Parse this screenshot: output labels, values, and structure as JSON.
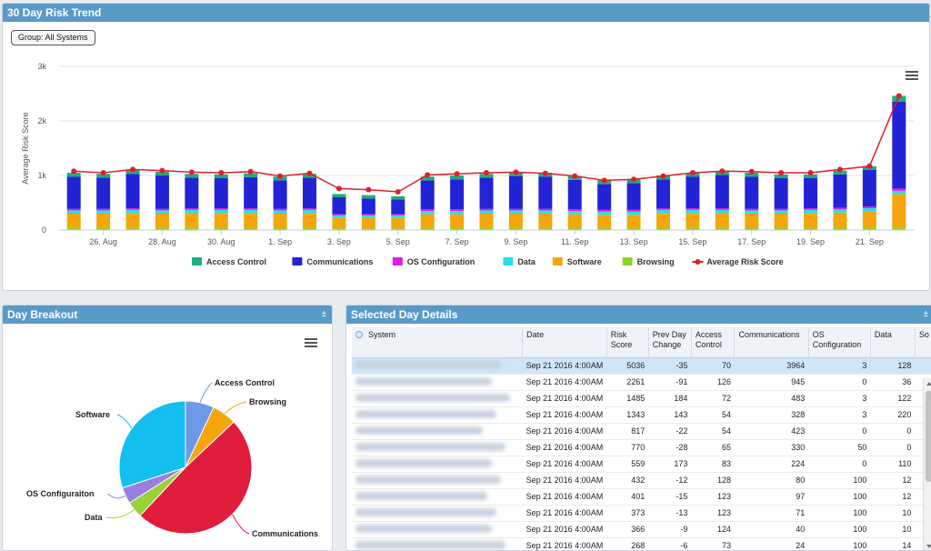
{
  "trend_panel": {
    "title": "30 Day Risk Trend",
    "group_button": "Group: All Systems",
    "menu_icon": "hamburger-menu-icon"
  },
  "breakout_panel": {
    "title": "Day Breakout",
    "collapse": "±",
    "menu_icon": "hamburger-menu-icon"
  },
  "details_panel": {
    "title": "Selected Day Details",
    "collapse": "±",
    "columns": [
      "System",
      "Date",
      "Risk Score",
      "Prev Day Change",
      "Access Control",
      "Communications",
      "OS Configuration",
      "Data",
      "So"
    ],
    "rows": [
      [
        "",
        "Sep 21 2016 4:00AM",
        "5036",
        "-35",
        "70",
        "3964",
        "3",
        "128"
      ],
      [
        "",
        "Sep 21 2016 4:00AM",
        "2261",
        "-91",
        "126",
        "945",
        "0",
        "36"
      ],
      [
        "",
        "Sep 21 2016 4:00AM",
        "1485",
        "184",
        "72",
        "483",
        "3",
        "122"
      ],
      [
        "",
        "Sep 21 2016 4:00AM",
        "1343",
        "143",
        "54",
        "328",
        "3",
        "220"
      ],
      [
        "",
        "Sep 21 2016 4:00AM",
        "817",
        "-22",
        "54",
        "423",
        "0",
        "0"
      ],
      [
        "",
        "Sep 21 2016 4:00AM",
        "770",
        "-28",
        "65",
        "330",
        "50",
        "0"
      ],
      [
        "",
        "Sep 21 2016 4:00AM",
        "559",
        "173",
        "83",
        "224",
        "0",
        "110"
      ],
      [
        "",
        "Sep 21 2016 4:00AM",
        "432",
        "-12",
        "128",
        "80",
        "100",
        "12"
      ],
      [
        "",
        "Sep 21 2016 4:00AM",
        "401",
        "-15",
        "123",
        "97",
        "100",
        "12"
      ],
      [
        "",
        "Sep 21 2016 4:00AM",
        "373",
        "-13",
        "123",
        "71",
        "100",
        "10"
      ],
      [
        "",
        "Sep 21 2016 4:00AM",
        "366",
        "-9",
        "124",
        "40",
        "100",
        "10"
      ],
      [
        "",
        "Sep 21 2016 4:00AM",
        "268",
        "-6",
        "73",
        "24",
        "100",
        "14"
      ]
    ]
  },
  "colors": {
    "Access Control": "#1dae7a",
    "Communications": "#2323d6",
    "OS Configuration": "#e31ae3",
    "Data": "#27dfe6",
    "Software": "#f5a60c",
    "Browsing": "#86d627",
    "Average Risk Score": "#e01e2a",
    "pie_access": "#6f98e6",
    "pie_browsing": "#f5a60c",
    "pie_comms": "#e01c3c",
    "pie_data": "#9ad03a",
    "pie_os": "#9b7fe0",
    "pie_software": "#12bfef"
  },
  "chart_data": [
    {
      "type": "bar",
      "stacked": true,
      "ylabel": "Average Risk Score",
      "ylim": [
        0,
        3000
      ],
      "yticks": [
        "0",
        "1k",
        "2k",
        "3k"
      ],
      "xtick_labels": [
        "26. Aug",
        "28. Aug",
        "30. Aug",
        "1. Sep",
        "3. Sep",
        "5. Sep",
        "7. Sep",
        "9. Sep",
        "11. Sep",
        "13. Sep",
        "15. Sep",
        "17. Sep",
        "19. Sep",
        "21. Sep"
      ],
      "categories": [
        "25 Aug",
        "26 Aug",
        "27 Aug",
        "28 Aug",
        "29 Aug",
        "30 Aug",
        "31 Aug",
        "1 Sep",
        "2 Sep",
        "3 Sep",
        "4 Sep",
        "5 Sep",
        "6 Sep",
        "7 Sep",
        "8 Sep",
        "9 Sep",
        "10 Sep",
        "11 Sep",
        "12 Sep",
        "13 Sep",
        "14 Sep",
        "15 Sep",
        "16 Sep",
        "17 Sep",
        "18 Sep",
        "19 Sep",
        "20 Sep",
        "21 Sep",
        "22 Sep"
      ],
      "legend_position": "bottom",
      "series": [
        {
          "name": "Browsing",
          "values": [
            40,
            40,
            40,
            40,
            40,
            40,
            40,
            40,
            40,
            30,
            30,
            30,
            40,
            40,
            40,
            40,
            40,
            40,
            40,
            40,
            40,
            40,
            40,
            40,
            40,
            40,
            40,
            40,
            40
          ]
        },
        {
          "name": "Software",
          "values": [
            260,
            260,
            270,
            260,
            270,
            270,
            270,
            260,
            270,
            200,
            200,
            200,
            250,
            250,
            260,
            260,
            260,
            250,
            240,
            240,
            270,
            270,
            270,
            260,
            260,
            270,
            280,
            300,
            620
          ]
        },
        {
          "name": "Data",
          "values": [
            60,
            60,
            60,
            60,
            60,
            60,
            60,
            60,
            60,
            40,
            40,
            40,
            60,
            60,
            60,
            60,
            60,
            60,
            60,
            60,
            60,
            60,
            60,
            60,
            60,
            60,
            60,
            60,
            60
          ]
        },
        {
          "name": "OS Configuration",
          "values": [
            30,
            30,
            30,
            30,
            30,
            30,
            30,
            30,
            30,
            20,
            20,
            20,
            30,
            30,
            30,
            30,
            30,
            30,
            30,
            30,
            30,
            30,
            30,
            30,
            30,
            30,
            30,
            30,
            40
          ]
        },
        {
          "name": "Communications",
          "values": [
            590,
            570,
            630,
            610,
            560,
            550,
            570,
            520,
            560,
            310,
            290,
            270,
            530,
            550,
            570,
            600,
            590,
            540,
            470,
            490,
            530,
            580,
            610,
            590,
            560,
            550,
            610,
            670,
            1590
          ]
        },
        {
          "name": "Access Control",
          "values": [
            70,
            70,
            70,
            70,
            70,
            70,
            70,
            70,
            70,
            60,
            60,
            60,
            70,
            70,
            70,
            70,
            70,
            70,
            70,
            70,
            70,
            70,
            70,
            70,
            70,
            70,
            70,
            70,
            110
          ]
        }
      ],
      "line": {
        "name": "Average Risk Score",
        "values": [
          1080,
          1050,
          1110,
          1090,
          1060,
          1050,
          1070,
          990,
          1040,
          760,
          740,
          700,
          1010,
          1030,
          1050,
          1060,
          1040,
          990,
          910,
          930,
          990,
          1050,
          1080,
          1070,
          1050,
          1050,
          1110,
          1170,
          2460
        ]
      }
    },
    {
      "type": "pie",
      "slices": [
        {
          "label": "Access Control",
          "value": 7
        },
        {
          "label": "Browsing",
          "value": 6
        },
        {
          "label": "Communications",
          "value": 49
        },
        {
          "label": "Data",
          "value": 4
        },
        {
          "label": "OS Configuraiton",
          "value": 4
        },
        {
          "label": "Software",
          "value": 30
        }
      ]
    }
  ],
  "legend": [
    "Access Control",
    "Communications",
    "OS Configuration",
    "Data",
    "Software",
    "Browsing",
    "Average Risk Score"
  ]
}
